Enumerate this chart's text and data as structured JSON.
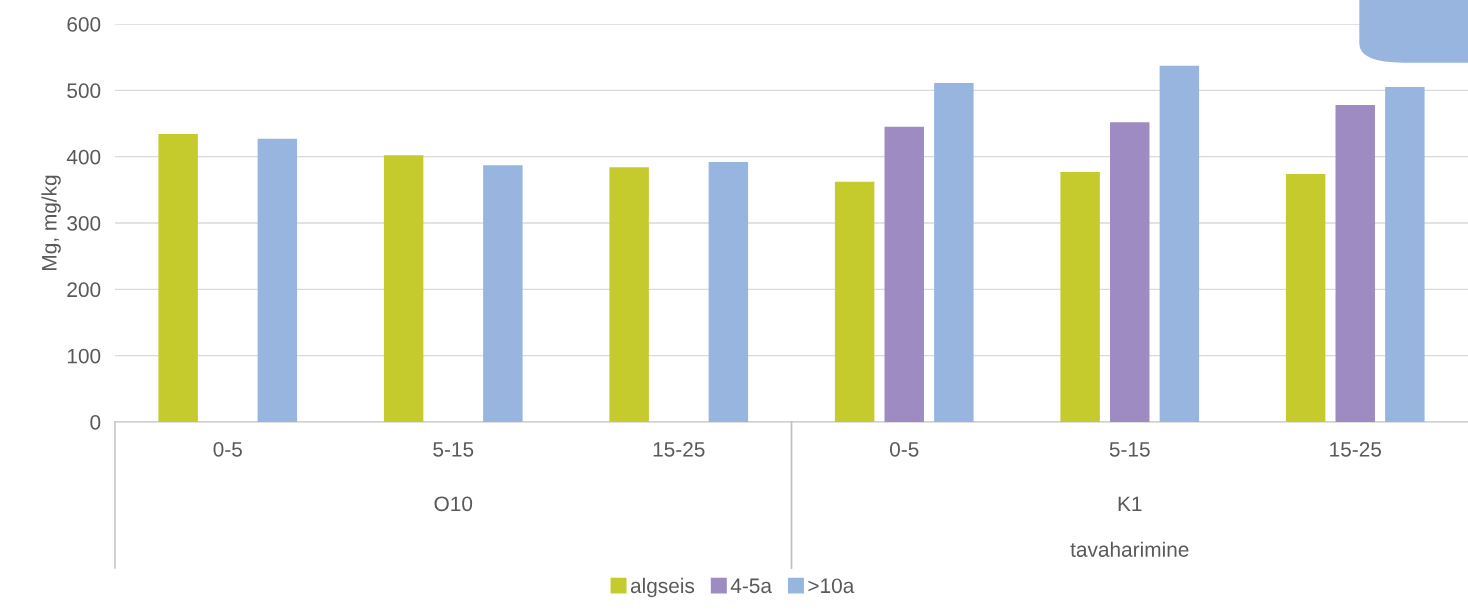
{
  "chart_data": {
    "type": "bar",
    "ylabel": "Mg, mg/kg",
    "categories": [
      "0-5",
      "5-15",
      "15-25",
      "0-5",
      "5-15",
      "15-25"
    ],
    "annotations": [
      "O10",
      "K1",
      "tavaharimine"
    ],
    "series": [
      {
        "name": "algseis",
        "color": "#c5cb2c",
        "values": [
          434,
          402,
          384,
          362,
          377,
          374
        ]
      },
      {
        "name": "4-5a",
        "color": "#9e8bc2",
        "values": [
          null,
          null,
          null,
          445,
          452,
          478
        ]
      },
      {
        "name": ">10a",
        "color": "#98b5e0",
        "values": [
          427,
          387,
          392,
          511,
          537,
          505
        ]
      }
    ],
    "ylim": [
      0,
      600
    ],
    "yticks": [
      0,
      100,
      200,
      300,
      400,
      500,
      600
    ],
    "grid": "y",
    "legend": "bottom"
  }
}
